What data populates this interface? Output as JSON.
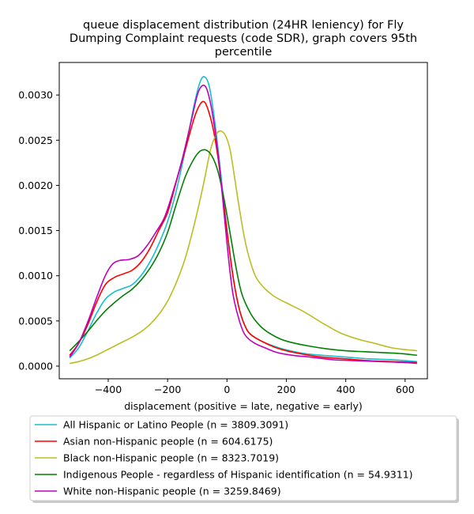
{
  "chart_data": {
    "type": "line",
    "title_lines": [
      "queue displacement distribution (24HR leniency) for Fly",
      "Dumping Complaint  requests (code SDR), graph covers 95th",
      "percentile"
    ],
    "xlabel": "displacement (positive = late, negative = early)",
    "ylabel": "",
    "xlim": [
      -565,
      675
    ],
    "ylim": [
      -0.00014,
      0.00336
    ],
    "xticks": [
      -400,
      -200,
      0,
      200,
      400,
      600
    ],
    "xtick_labels": [
      "−400",
      "−200",
      "0",
      "200",
      "400",
      "600"
    ],
    "yticks": [
      0.0,
      0.0005,
      0.001,
      0.0015,
      0.002,
      0.0025,
      0.003
    ],
    "ytick_labels": [
      "0.0000",
      "0.0005",
      "0.0010",
      "0.0015",
      "0.0020",
      "0.0025",
      "0.0030"
    ],
    "grid": false,
    "legend_position": "below",
    "series": [
      {
        "name": "All Hispanic or Latino People (n = 3809.3091)",
        "color": "#17becf",
        "points": [
          [
            -530,
            9e-05
          ],
          [
            -500,
            0.0002
          ],
          [
            -470,
            0.00038
          ],
          [
            -440,
            0.00058
          ],
          [
            -410,
            0.00074
          ],
          [
            -380,
            0.00082
          ],
          [
            -350,
            0.00086
          ],
          [
            -320,
            0.0009
          ],
          [
            -290,
            0.001
          ],
          [
            -260,
            0.00115
          ],
          [
            -230,
            0.00135
          ],
          [
            -200,
            0.0016
          ],
          [
            -170,
            0.00195
          ],
          [
            -140,
            0.0024
          ],
          [
            -110,
            0.0029
          ],
          [
            -90,
            0.00315
          ],
          [
            -75,
            0.0032
          ],
          [
            -60,
            0.0031
          ],
          [
            -45,
            0.0028
          ],
          [
            -30,
            0.0024
          ],
          [
            -15,
            0.00195
          ],
          [
            0,
            0.0015
          ],
          [
            20,
            0.001
          ],
          [
            40,
            0.00065
          ],
          [
            60,
            0.00045
          ],
          [
            80,
            0.00035
          ],
          [
            120,
            0.00027
          ],
          [
            160,
            0.00022
          ],
          [
            200,
            0.00018
          ],
          [
            260,
            0.00014
          ],
          [
            320,
            0.00012
          ],
          [
            400,
            0.0001
          ],
          [
            480,
            8e-05
          ],
          [
            560,
            7e-05
          ],
          [
            640,
            5e-05
          ]
        ]
      },
      {
        "name": "Asian non-Hispanic people (n = 604.6175)",
        "color": "#ff0000",
        "points": [
          [
            -530,
            0.00012
          ],
          [
            -500,
            0.00025
          ],
          [
            -470,
            0.00045
          ],
          [
            -440,
            0.0007
          ],
          [
            -410,
            0.0009
          ],
          [
            -380,
            0.00098
          ],
          [
            -350,
            0.00102
          ],
          [
            -320,
            0.00106
          ],
          [
            -290,
            0.00115
          ],
          [
            -260,
            0.0013
          ],
          [
            -230,
            0.0015
          ],
          [
            -200,
            0.0017
          ],
          [
            -170,
            0.00205
          ],
          [
            -140,
            0.0024
          ],
          [
            -110,
            0.00275
          ],
          [
            -90,
            0.0029
          ],
          [
            -75,
            0.00292
          ],
          [
            -60,
            0.0028
          ],
          [
            -45,
            0.0026
          ],
          [
            -30,
            0.0023
          ],
          [
            -15,
            0.0019
          ],
          [
            0,
            0.0015
          ],
          [
            20,
            0.001
          ],
          [
            40,
            0.00065
          ],
          [
            60,
            0.00045
          ],
          [
            80,
            0.00035
          ],
          [
            120,
            0.00027
          ],
          [
            160,
            0.00021
          ],
          [
            200,
            0.00017
          ],
          [
            260,
            0.00013
          ],
          [
            320,
            0.0001
          ],
          [
            400,
            8e-05
          ],
          [
            480,
            6e-05
          ],
          [
            560,
            5e-05
          ],
          [
            640,
            4e-05
          ]
        ]
      },
      {
        "name": "Black non-Hispanic people (n = 8323.7019)",
        "color": "#bcbd22",
        "points": [
          [
            -530,
            3e-05
          ],
          [
            -500,
            5e-05
          ],
          [
            -470,
            8e-05
          ],
          [
            -440,
            0.00012
          ],
          [
            -410,
            0.00017
          ],
          [
            -380,
            0.00022
          ],
          [
            -350,
            0.00027
          ],
          [
            -320,
            0.00032
          ],
          [
            -290,
            0.00038
          ],
          [
            -260,
            0.00046
          ],
          [
            -230,
            0.00057
          ],
          [
            -200,
            0.00072
          ],
          [
            -170,
            0.00093
          ],
          [
            -140,
            0.0012
          ],
          [
            -110,
            0.00157
          ],
          [
            -80,
            0.002
          ],
          [
            -55,
            0.0024
          ],
          [
            -35,
            0.00257
          ],
          [
            -20,
            0.0026
          ],
          [
            -5,
            0.00255
          ],
          [
            10,
            0.0024
          ],
          [
            25,
            0.0021
          ],
          [
            40,
            0.00178
          ],
          [
            60,
            0.0014
          ],
          [
            80,
            0.00114
          ],
          [
            100,
            0.00097
          ],
          [
            130,
            0.00085
          ],
          [
            160,
            0.00077
          ],
          [
            200,
            0.0007
          ],
          [
            260,
            0.0006
          ],
          [
            320,
            0.00048
          ],
          [
            380,
            0.00037
          ],
          [
            440,
            0.0003
          ],
          [
            500,
            0.00025
          ],
          [
            560,
            0.0002
          ],
          [
            640,
            0.00017
          ]
        ]
      },
      {
        "name": "Indigenous People - regardless of Hispanic identification (n = 54.9311)",
        "color": "#008000",
        "points": [
          [
            -530,
            0.00017
          ],
          [
            -500,
            0.00027
          ],
          [
            -470,
            0.00038
          ],
          [
            -440,
            0.0005
          ],
          [
            -410,
            0.00061
          ],
          [
            -380,
            0.0007
          ],
          [
            -350,
            0.00078
          ],
          [
            -320,
            0.00085
          ],
          [
            -290,
            0.00095
          ],
          [
            -260,
            0.00108
          ],
          [
            -230,
            0.00125
          ],
          [
            -200,
            0.00148
          ],
          [
            -170,
            0.0018
          ],
          [
            -140,
            0.0021
          ],
          [
            -110,
            0.0023
          ],
          [
            -90,
            0.00238
          ],
          [
            -70,
            0.00239
          ],
          [
            -50,
            0.00232
          ],
          [
            -30,
            0.00215
          ],
          [
            -10,
            0.00185
          ],
          [
            10,
            0.00148
          ],
          [
            30,
            0.0011
          ],
          [
            50,
            0.0008
          ],
          [
            80,
            0.00058
          ],
          [
            110,
            0.00045
          ],
          [
            140,
            0.00037
          ],
          [
            180,
            0.0003
          ],
          [
            220,
            0.00026
          ],
          [
            280,
            0.00022
          ],
          [
            340,
            0.00019
          ],
          [
            400,
            0.00017
          ],
          [
            460,
            0.00016
          ],
          [
            520,
            0.00015
          ],
          [
            580,
            0.00014
          ],
          [
            640,
            0.00012
          ]
        ]
      },
      {
        "name": "White non-Hispanic people (n = 3259.8469)",
        "color": "#bf00bf",
        "points": [
          [
            -530,
            0.0001
          ],
          [
            -500,
            0.00025
          ],
          [
            -470,
            0.00048
          ],
          [
            -440,
            0.00075
          ],
          [
            -410,
            0.001
          ],
          [
            -385,
            0.00113
          ],
          [
            -360,
            0.00117
          ],
          [
            -330,
            0.00118
          ],
          [
            -300,
            0.00122
          ],
          [
            -270,
            0.00133
          ],
          [
            -240,
            0.00148
          ],
          [
            -210,
            0.00165
          ],
          [
            -180,
            0.00195
          ],
          [
            -150,
            0.0023
          ],
          [
            -120,
            0.00272
          ],
          [
            -100,
            0.003
          ],
          [
            -85,
            0.0031
          ],
          [
            -70,
            0.00308
          ],
          [
            -55,
            0.0029
          ],
          [
            -40,
            0.0026
          ],
          [
            -25,
            0.0022
          ],
          [
            -10,
            0.0017
          ],
          [
            5,
            0.0012
          ],
          [
            20,
            0.0008
          ],
          [
            40,
            0.00052
          ],
          [
            60,
            0.00035
          ],
          [
            90,
            0.00026
          ],
          [
            130,
            0.0002
          ],
          [
            170,
            0.00015
          ],
          [
            220,
            0.00012
          ],
          [
            280,
            0.0001
          ],
          [
            360,
            7e-05
          ],
          [
            440,
            6e-05
          ],
          [
            520,
            5e-05
          ],
          [
            600,
            4e-05
          ],
          [
            640,
            3e-05
          ]
        ]
      }
    ]
  }
}
